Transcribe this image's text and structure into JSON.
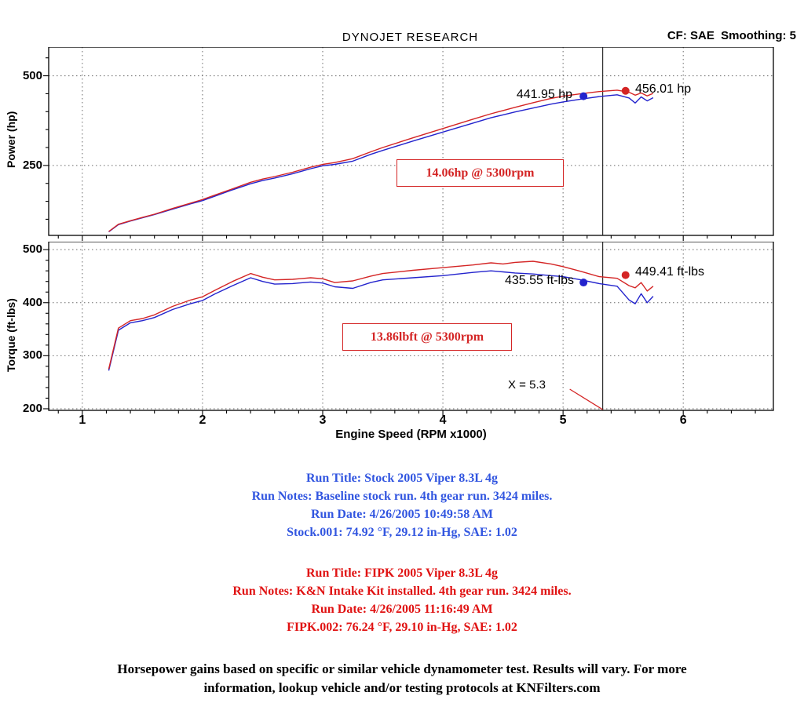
{
  "header": {
    "title": "DYNOJET RESEARCH",
    "cf_smoothing": "CF: SAE  Smoothing: 5"
  },
  "colors": {
    "stock_blue": "#2323cd",
    "fipk_red": "#d42525",
    "run_text_blue": "#3256e0",
    "run_text_red": "#e01212"
  },
  "chart_data": [
    {
      "type": "line",
      "id": "power",
      "title": "DYNOJET RESEARCH",
      "ylabel": "Power (hp)",
      "xlabel": "",
      "xlim": [
        0.72,
        6.75
      ],
      "ylim": [
        55,
        580
      ],
      "yticks": [
        250,
        500
      ],
      "xticks": [
        1,
        2,
        3,
        4,
        5,
        6
      ],
      "grid": "dotted",
      "cursor_x": 5.33,
      "series": [
        {
          "name": "Stock.001",
          "color": "#2323cd",
          "x": [
            1.22,
            1.3,
            1.4,
            1.5,
            1.6,
            1.75,
            1.9,
            2.0,
            2.1,
            2.25,
            2.4,
            2.5,
            2.6,
            2.75,
            2.9,
            3.0,
            3.1,
            3.25,
            3.4,
            3.5,
            3.75,
            4.0,
            4.25,
            4.4,
            4.5,
            4.6,
            4.75,
            4.9,
            5.0,
            5.15,
            5.3,
            5.45,
            5.55,
            5.6,
            5.65,
            5.7,
            5.75
          ],
          "values": [
            65,
            85,
            95,
            104,
            113,
            128,
            143,
            152,
            164,
            182,
            199,
            208,
            215,
            227,
            241,
            249,
            253,
            262,
            281,
            292,
            318,
            343,
            368,
            383,
            391,
            399,
            410,
            421,
            427,
            435,
            442,
            447,
            438,
            424,
            441,
            430,
            439
          ]
        },
        {
          "name": "FIPK.002",
          "color": "#d42525",
          "x": [
            1.22,
            1.3,
            1.4,
            1.5,
            1.6,
            1.75,
            1.9,
            2.0,
            2.1,
            2.25,
            2.4,
            2.5,
            2.6,
            2.75,
            2.9,
            3.0,
            3.1,
            3.25,
            3.4,
            3.5,
            3.75,
            4.0,
            4.25,
            4.4,
            4.5,
            4.6,
            4.75,
            4.9,
            5.0,
            5.15,
            5.3,
            5.45,
            5.55,
            5.6,
            5.65,
            5.7,
            5.75
          ],
          "values": [
            66,
            86,
            96,
            105,
            114,
            130,
            145,
            155,
            167,
            185,
            203,
            212,
            219,
            231,
            245,
            253,
            258,
            269,
            288,
            300,
            327,
            353,
            379,
            394,
            403,
            412,
            425,
            437,
            443,
            450,
            456,
            460,
            454,
            446,
            452,
            444,
            451
          ]
        }
      ],
      "markers": [
        {
          "x": 5.17,
          "y": 443,
          "color": "#2323cd",
          "label": "441.95 hp",
          "side": "left"
        },
        {
          "x": 5.52,
          "y": 458,
          "color": "#d42525",
          "label": "456.01 hp",
          "side": "right"
        }
      ],
      "gain_annotation": "14.06hp @ 5300rpm"
    },
    {
      "type": "line",
      "id": "torque",
      "ylabel": "Torque (ft-lbs)",
      "xlabel": "Engine Speed (RPM x1000)",
      "xlim": [
        0.72,
        6.75
      ],
      "ylim": [
        197,
        515
      ],
      "yticks": [
        200,
        300,
        400,
        500
      ],
      "xticks": [
        1,
        2,
        3,
        4,
        5,
        6
      ],
      "grid": "dotted",
      "cursor_x": 5.33,
      "cursor_label": "X = 5.3",
      "series": [
        {
          "name": "Stock.001",
          "color": "#2323cd",
          "x": [
            1.22,
            1.3,
            1.4,
            1.5,
            1.6,
            1.75,
            1.9,
            2.0,
            2.1,
            2.25,
            2.4,
            2.5,
            2.6,
            2.75,
            2.9,
            3.0,
            3.1,
            3.25,
            3.4,
            3.5,
            3.75,
            4.0,
            4.25,
            4.4,
            4.5,
            4.6,
            4.75,
            4.9,
            5.0,
            5.15,
            5.3,
            5.45,
            5.55,
            5.6,
            5.65,
            5.7,
            5.75
          ],
          "values": [
            272,
            348,
            362,
            366,
            372,
            387,
            398,
            404,
            416,
            432,
            447,
            440,
            435,
            436,
            439,
            437,
            430,
            427,
            438,
            443,
            447,
            451,
            457,
            460,
            458,
            456,
            454,
            451,
            449,
            443,
            436,
            431,
            405,
            398,
            417,
            400,
            412
          ]
        },
        {
          "name": "FIPK.002",
          "color": "#d42525",
          "x": [
            1.22,
            1.3,
            1.4,
            1.5,
            1.6,
            1.75,
            1.9,
            2.0,
            2.1,
            2.25,
            2.4,
            2.5,
            2.6,
            2.75,
            2.9,
            3.0,
            3.1,
            3.25,
            3.4,
            3.5,
            3.75,
            4.0,
            4.25,
            4.4,
            4.5,
            4.6,
            4.75,
            4.9,
            5.0,
            5.15,
            5.3,
            5.45,
            5.55,
            5.6,
            5.65,
            5.7,
            5.75
          ],
          "values": [
            275,
            352,
            366,
            370,
            377,
            393,
            405,
            411,
            423,
            440,
            455,
            448,
            443,
            444,
            447,
            445,
            438,
            441,
            450,
            455,
            461,
            466,
            471,
            475,
            473,
            476,
            478,
            473,
            468,
            459,
            449,
            446,
            432,
            428,
            438,
            422,
            431
          ]
        }
      ],
      "markers": [
        {
          "x": 5.17,
          "y": 438,
          "color": "#2323cd",
          "label": "435.55 ft-lbs",
          "side": "left"
        },
        {
          "x": 5.52,
          "y": 452,
          "color": "#d42525",
          "label": "449.41 ft-lbs",
          "side": "right"
        }
      ],
      "gain_annotation": "13.86lbft @ 5300rpm"
    }
  ],
  "runs": [
    {
      "color": "#3256e0",
      "lines": [
        "Run Title: Stock 2005 Viper 8.3L 4g",
        "Run Notes: Baseline stock run. 4th gear run. 3424 miles.",
        "Run Date: 4/26/2005 10:49:58 AM",
        "Stock.001: 74.92 °F, 29.12 in-Hg, SAE: 1.02"
      ]
    },
    {
      "color": "#e01212",
      "lines": [
        "Run Title: FIPK 2005 Viper 8.3L 4g",
        "Run Notes: K&N Intake Kit installed. 4th gear run. 3424 miles.",
        "Run Date: 4/26/2005 11:16:49 AM",
        "FIPK.002: 76.24 °F, 29.10 in-Hg, SAE: 1.02"
      ]
    }
  ],
  "footer": {
    "lines": [
      "Horsepower gains based on specific or similar vehicle dynamometer test. Results will vary. For more",
      "information, lookup vehicle and/or testing protocols at KNFilters.com"
    ]
  }
}
